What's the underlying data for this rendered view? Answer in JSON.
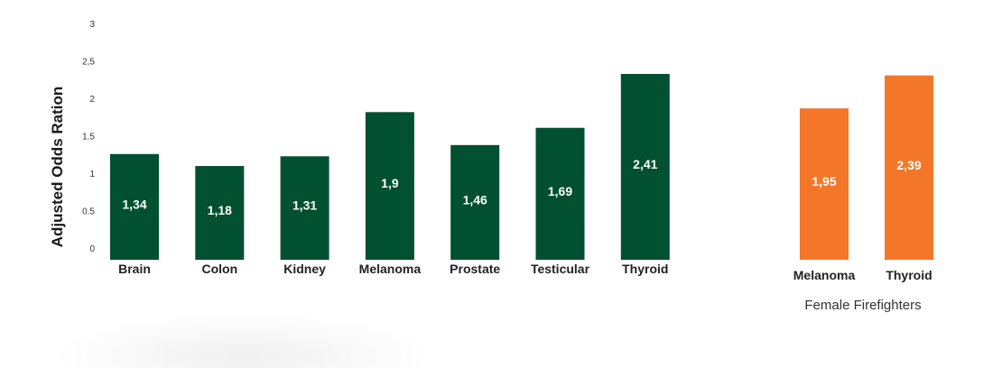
{
  "chart_data": [
    {
      "type": "bar",
      "categories": [
        "Brain",
        "Colon",
        "Kidney",
        "Melanoma",
        "Prostate",
        "Testicular",
        "Thyroid"
      ],
      "values": [
        1.34,
        1.18,
        1.31,
        1.9,
        1.46,
        1.69,
        2.41
      ],
      "value_labels": [
        "1,34",
        "1,18",
        "1,31",
        "1,9",
        "1,46",
        "1,69",
        "2,41"
      ],
      "ylabel": "Adjusted Odds Ration",
      "ylim": [
        0,
        3
      ],
      "yticks": [
        0,
        0.5,
        1,
        1.5,
        2,
        2.5,
        3
      ],
      "ytick_labels": [
        "0",
        "0.5",
        "1",
        "1.5",
        "2",
        "2,5",
        "3"
      ],
      "grid": false,
      "color": "#005031"
    },
    {
      "type": "bar",
      "group_label": "Female Firefighters",
      "categories": [
        "Melanoma",
        "Thyroid"
      ],
      "values": [
        1.95,
        2.39
      ],
      "value_labels": [
        "1,95",
        "2,39"
      ],
      "ylim": [
        0,
        3
      ],
      "grid": false,
      "color": "#F47729"
    }
  ]
}
